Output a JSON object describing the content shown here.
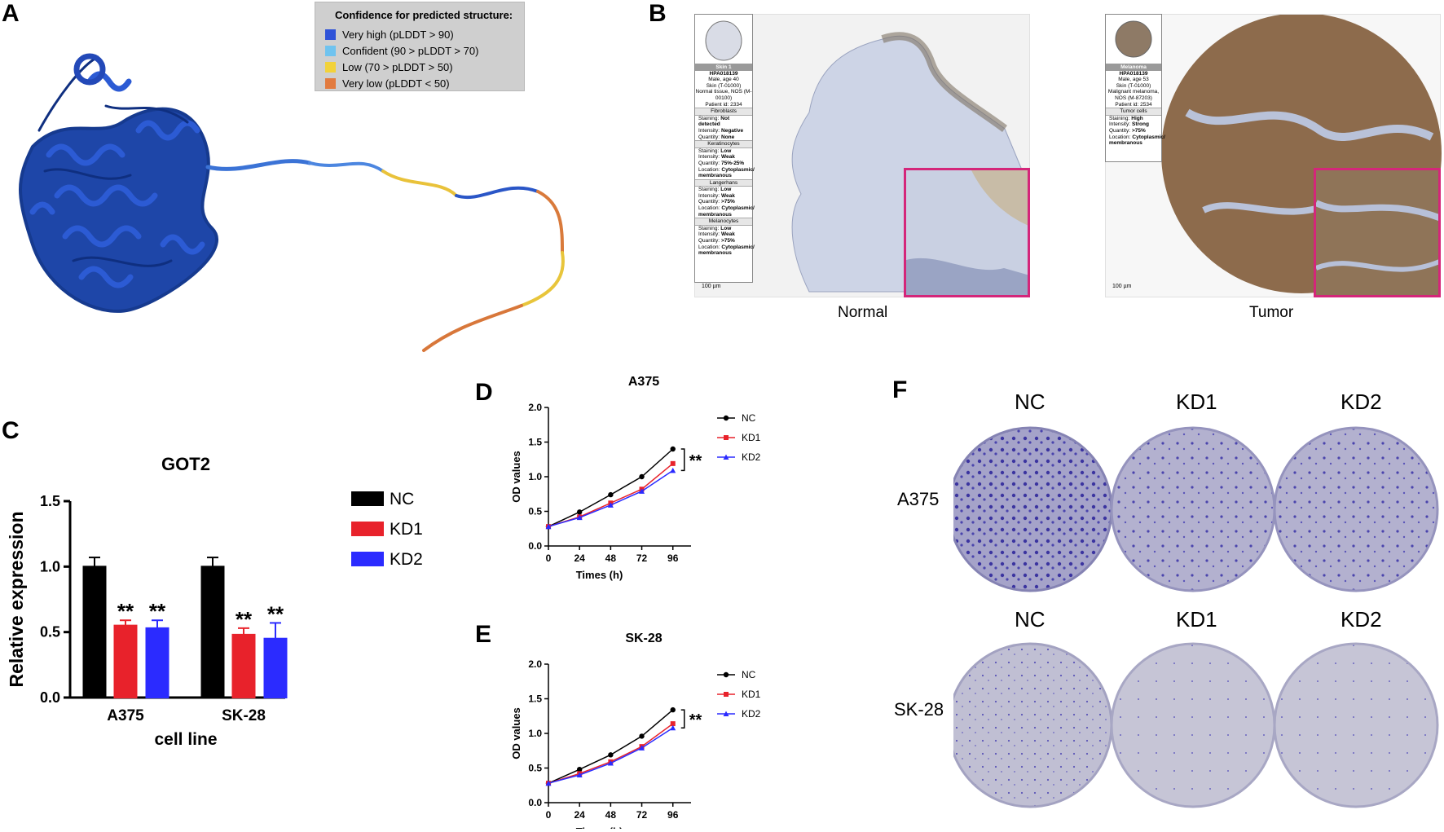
{
  "panels": {
    "a": "A",
    "b": "B",
    "c": "C",
    "d": "D",
    "e": "E",
    "f": "F"
  },
  "panel_a": {
    "legend_title": "Confidence for predicted structure:",
    "legend": [
      {
        "label": "Very high (pLDDT > 90)",
        "color": "#2f53d8"
      },
      {
        "label": "Confident (90 > pLDDT > 70)",
        "color": "#6fc3ef"
      },
      {
        "label": "Low (70 > pLDDT > 50)",
        "color": "#f2d23a"
      },
      {
        "label": "Very low (pLDDT < 50)",
        "color": "#e27b3f"
      }
    ]
  },
  "panel_b": {
    "normal": {
      "caption": "Normal",
      "card_header": "Skin 1",
      "card": [
        {
          "t": "HPA018139",
          "b": true
        },
        {
          "t": "Male, age 40"
        },
        {
          "t": "Skin (T-01000)"
        },
        {
          "t": "Normal tissue, NOS (M-00100)"
        },
        {
          "t": "Patient id: 2334"
        }
      ],
      "sections": [
        {
          "name": "Fibroblasts",
          "rows": [
            [
              "Staining:",
              "Not detected"
            ],
            [
              "Intensity:",
              "Negative"
            ],
            [
              "Quantity:",
              "None"
            ]
          ]
        },
        {
          "name": "Keratinocytes",
          "rows": [
            [
              "Staining:",
              "Low"
            ],
            [
              "Intensity:",
              "Weak"
            ],
            [
              "Quantity:",
              "75%-25%"
            ],
            [
              "Location:",
              "Cytoplasmic/ membranous"
            ]
          ]
        },
        {
          "name": "Langerhans",
          "rows": [
            [
              "Staining:",
              "Low"
            ],
            [
              "Intensity:",
              "Weak"
            ],
            [
              "Quantity:",
              ">75%"
            ],
            [
              "Location:",
              "Cytoplasmic/ membranous"
            ]
          ]
        },
        {
          "name": "Melanocytes",
          "rows": [
            [
              "Staining:",
              "Low"
            ],
            [
              "Intensity:",
              "Weak"
            ],
            [
              "Quantity:",
              ">75%"
            ],
            [
              "Location:",
              "Cytoplasmic/ membranous"
            ]
          ]
        }
      ],
      "scale": "100 µm"
    },
    "tumor": {
      "caption": "Tumor",
      "card_header": "Melanoma",
      "card": [
        {
          "t": "HPA018139",
          "b": true
        },
        {
          "t": "Male, age 53"
        },
        {
          "t": "Skin (T-01000)"
        },
        {
          "t": "Malignant melanoma, NOS (M-87203)"
        },
        {
          "t": "Patient id: 2534"
        }
      ],
      "sections": [
        {
          "name": "Tumor cells",
          "rows": [
            [
              "Staining:",
              "High"
            ],
            [
              "Intensity:",
              "Strong"
            ],
            [
              "Quantity:",
              ">75%"
            ],
            [
              "Location:",
              "Cytoplasmic/ membranous"
            ]
          ]
        }
      ],
      "scale": "100 µm"
    }
  },
  "chart_data": [
    {
      "id": "C",
      "type": "bar",
      "title": "GOT2",
      "xlabel": "cell line",
      "ylabel": "Relative expression",
      "categories": [
        "A375",
        "SK-28"
      ],
      "ylim": [
        0,
        1.5
      ],
      "yticks": [
        "0.0",
        "0.5",
        "1.0",
        "1.5"
      ],
      "series": [
        {
          "name": "NC",
          "color": "#000000",
          "values": [
            1.0,
            1.0
          ],
          "errors": [
            0.07,
            0.07
          ],
          "sig": [
            "",
            ""
          ]
        },
        {
          "name": "KD1",
          "color": "#e8222b",
          "values": [
            0.55,
            0.48
          ],
          "errors": [
            0.04,
            0.05
          ],
          "sig": [
            "**",
            "**"
          ]
        },
        {
          "name": "KD2",
          "color": "#2b2bff",
          "values": [
            0.53,
            0.45
          ],
          "errors": [
            0.06,
            0.12
          ],
          "sig": [
            "**",
            "**"
          ]
        }
      ]
    },
    {
      "id": "D",
      "type": "line",
      "title": "A375",
      "xlabel": "Times (h)",
      "ylabel": "OD values",
      "x": [
        0,
        24,
        48,
        72,
        96
      ],
      "xticks": [
        "0",
        "24",
        "48",
        "72",
        "96"
      ],
      "ylim": [
        0,
        2.0
      ],
      "yticks": [
        "0.0",
        "0.5",
        "1.0",
        "1.5",
        "2.0"
      ],
      "sig": "**",
      "series": [
        {
          "name": "NC",
          "color": "#000000",
          "marker": "circle",
          "values": [
            0.28,
            0.49,
            0.74,
            1.0,
            1.4
          ]
        },
        {
          "name": "KD1",
          "color": "#e8222b",
          "marker": "square",
          "values": [
            0.28,
            0.42,
            0.62,
            0.82,
            1.19
          ]
        },
        {
          "name": "KD2",
          "color": "#2b2bff",
          "marker": "triangle",
          "values": [
            0.28,
            0.41,
            0.59,
            0.79,
            1.09
          ]
        }
      ]
    },
    {
      "id": "E",
      "type": "line",
      "title": "SK-28",
      "xlabel": "Times (h)",
      "ylabel": "OD values",
      "x": [
        0,
        24,
        48,
        72,
        96
      ],
      "xticks": [
        "0",
        "24",
        "48",
        "72",
        "96"
      ],
      "ylim": [
        0,
        2.0
      ],
      "yticks": [
        "0.0",
        "0.5",
        "1.0",
        "1.5",
        "2.0"
      ],
      "sig": "**",
      "series": [
        {
          "name": "NC",
          "color": "#000000",
          "marker": "circle",
          "values": [
            0.28,
            0.48,
            0.69,
            0.96,
            1.34
          ]
        },
        {
          "name": "KD1",
          "color": "#e8222b",
          "marker": "square",
          "values": [
            0.28,
            0.42,
            0.59,
            0.81,
            1.14
          ]
        },
        {
          "name": "KD2",
          "color": "#2b2bff",
          "marker": "triangle",
          "values": [
            0.28,
            0.4,
            0.57,
            0.79,
            1.08
          ]
        }
      ]
    }
  ],
  "panel_f": {
    "columns": [
      "NC",
      "KD1",
      "KD2"
    ],
    "columns_row2": [
      "NC",
      "KD1",
      "KD2"
    ],
    "rows": [
      "A375",
      "SK-28"
    ]
  }
}
